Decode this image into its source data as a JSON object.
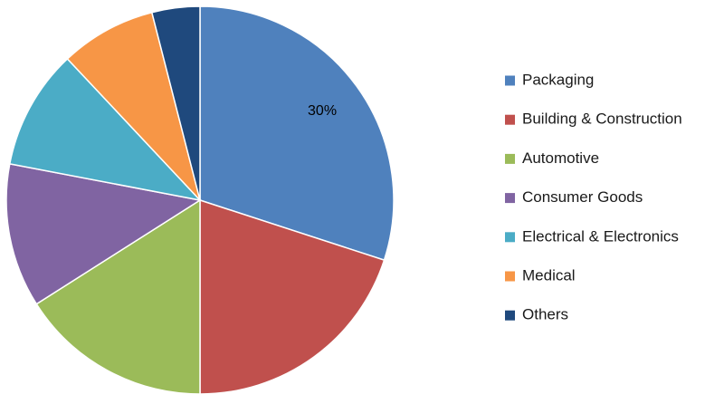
{
  "chart_data": {
    "type": "pie",
    "categories": [
      "Packaging",
      "Building & Construction",
      "Automotive",
      "Consumer Goods",
      "Electrical & Electronics",
      "Medical",
      "Others"
    ],
    "values": [
      30,
      20,
      16,
      12,
      10,
      8,
      4
    ],
    "colors": [
      "#4f81bd",
      "#c0504d",
      "#9bbb59",
      "#8064a2",
      "#4bacc6",
      "#f79646",
      "#1f497d"
    ],
    "data_labels": [
      "30%",
      "",
      "",
      "",
      "",
      "",
      ""
    ],
    "start_angle_deg": 0,
    "direction": "clockwise",
    "legend_position": "right"
  }
}
